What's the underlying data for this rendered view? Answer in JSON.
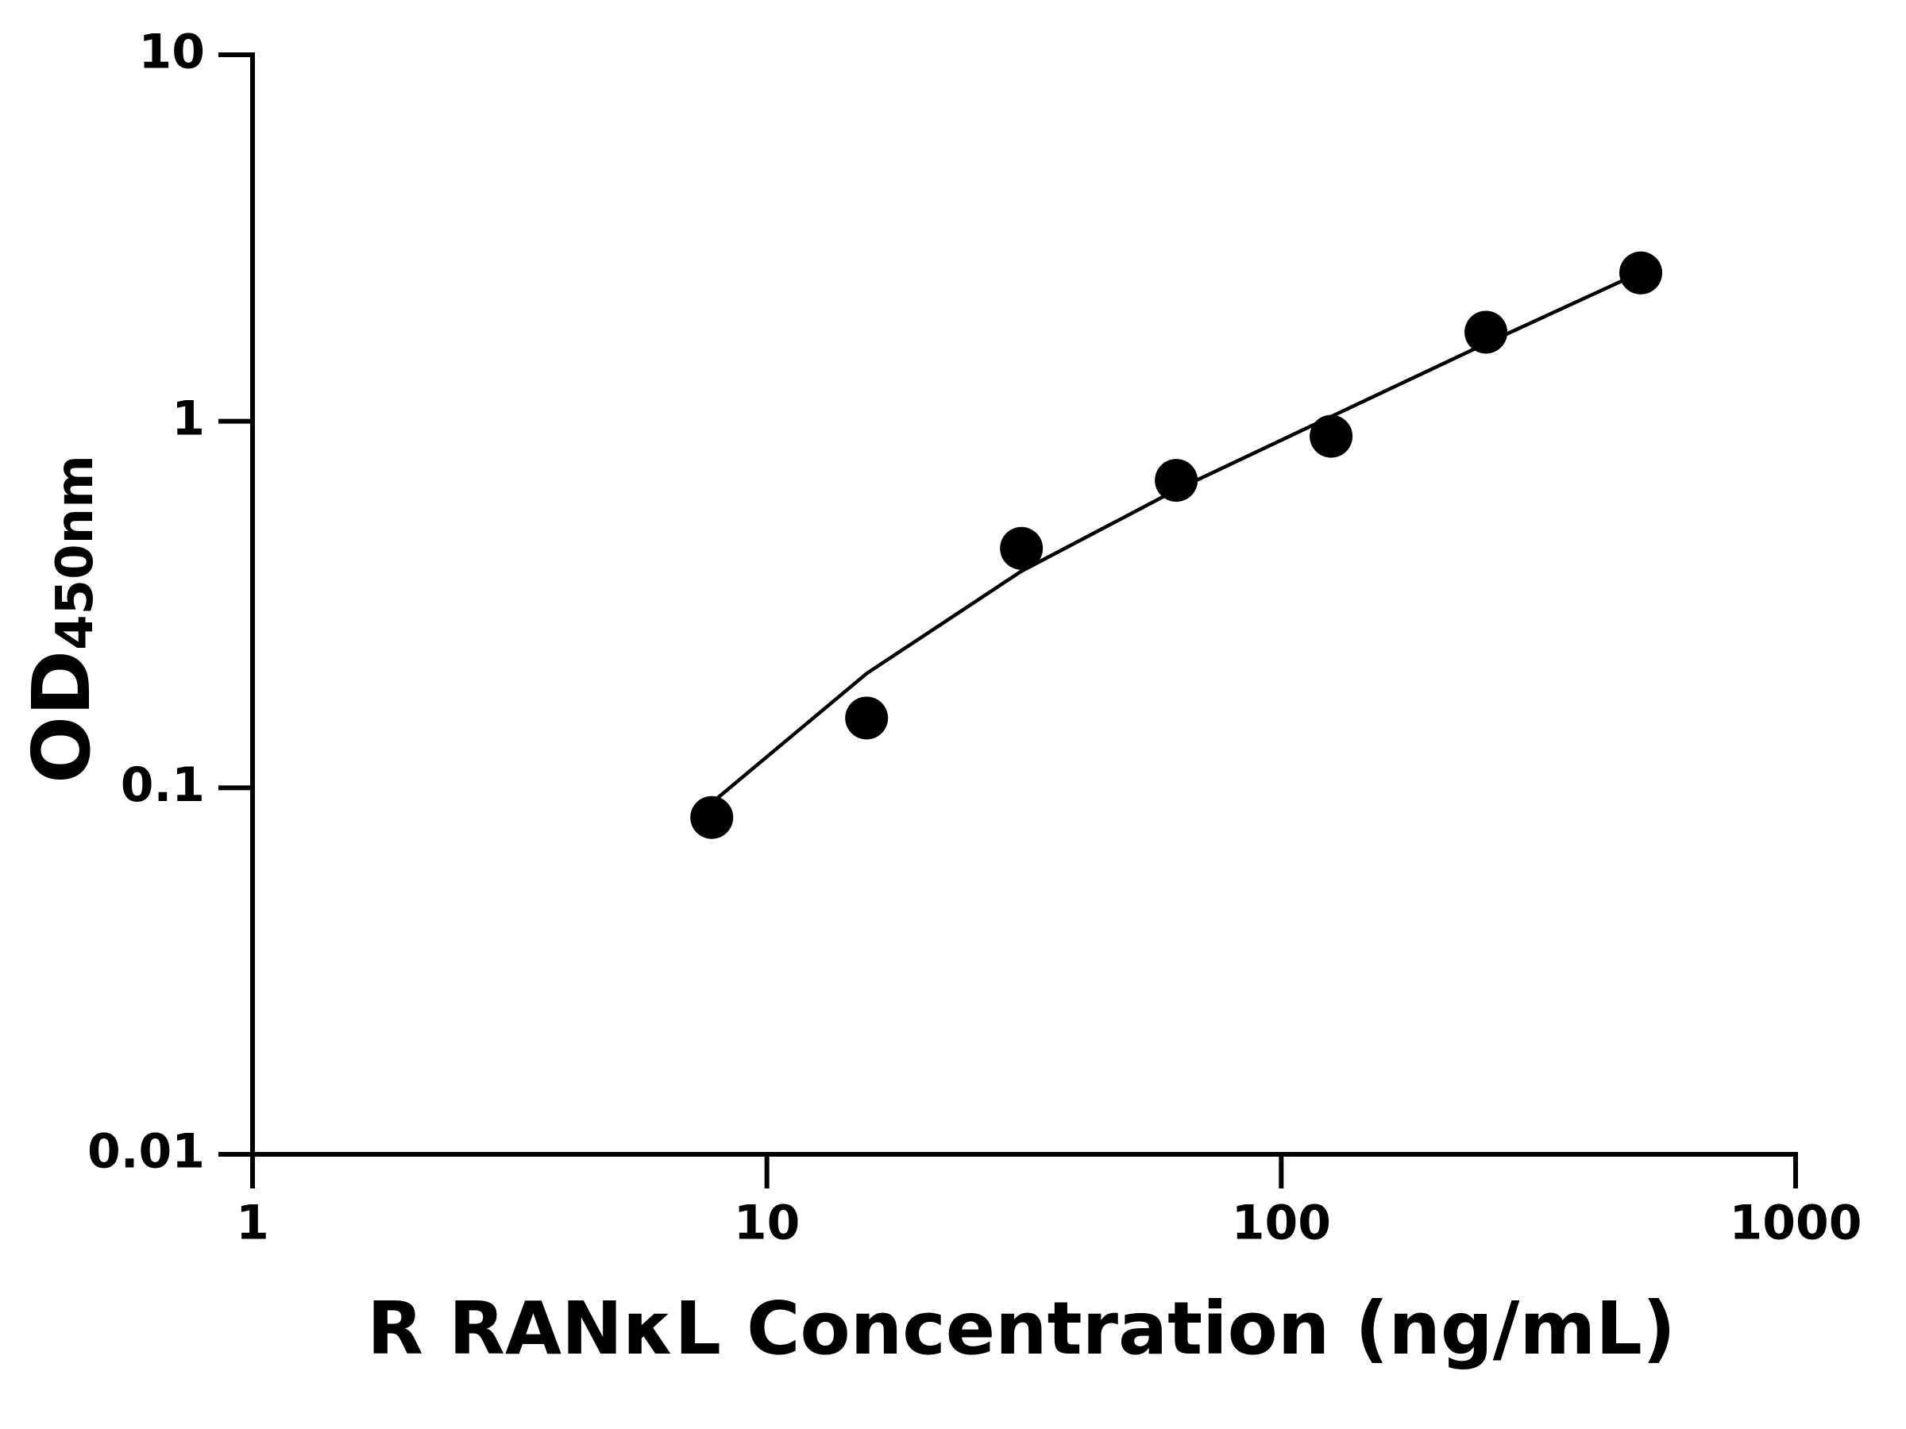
{
  "chart_data": {
    "type": "scatter",
    "xlabel": "R RANκL Concentration (ng/mL)",
    "ylabel": {
      "text": "OD",
      "subscript": "450nm"
    },
    "xscale": "log",
    "yscale": "log",
    "xlim": [
      1,
      1000
    ],
    "ylim": [
      0.01,
      10
    ],
    "xticks": [
      1,
      10,
      100,
      1000
    ],
    "yticks": [
      0.01,
      0.1,
      1,
      10
    ],
    "series": [
      {
        "style": "markers",
        "color": "#000000",
        "x": [
          7.8125,
          15.625,
          31.25,
          62.5,
          125,
          250,
          500
        ],
        "values": [
          0.083,
          0.155,
          0.45,
          0.69,
          0.91,
          1.75,
          2.54
        ]
      },
      {
        "style": "line",
        "color": "#000000",
        "x": [
          7.8125,
          15.625,
          31.25,
          62.5,
          125,
          250,
          500
        ],
        "values": [
          0.091,
          0.205,
          0.39,
          0.65,
          1.03,
          1.63,
          2.55
        ]
      }
    ]
  }
}
